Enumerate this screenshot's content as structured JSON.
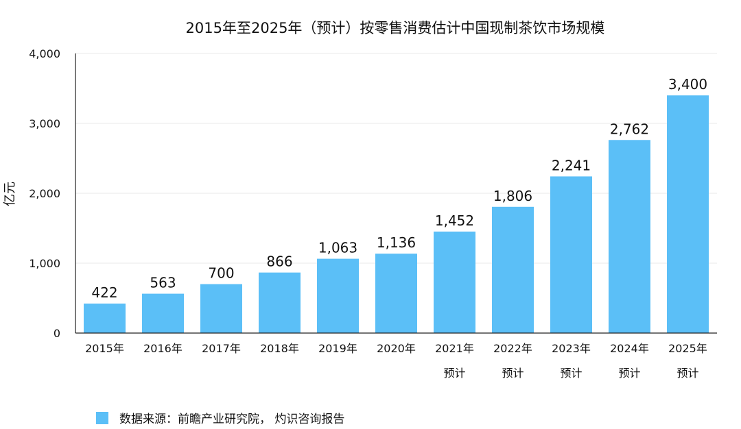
{
  "colors": {
    "bar": "#5bbff7",
    "grid": "#e9e9e9",
    "axis": "#222222",
    "text": "#111111"
  },
  "legend": {
    "text": "数据来源：前瞻产业研究院， 灼识咨询报告"
  },
  "chart_data": {
    "type": "bar",
    "title": "2015年至2025年（预计）按零售消费估计中国现制茶饮市场规模",
    "ylabel": "亿元",
    "xlabel": "",
    "ylim": [
      0,
      4000
    ],
    "yticks": [
      "0",
      "1,000",
      "2,000",
      "3,000",
      "4,000"
    ],
    "ytick_values": [
      0,
      1000,
      2000,
      3000,
      4000
    ],
    "grid": true,
    "legend_position": "bottom-left",
    "categories": [
      [
        "2015年"
      ],
      [
        "2016年"
      ],
      [
        "2017年"
      ],
      [
        "2018年"
      ],
      [
        "2019年"
      ],
      [
        "2020年"
      ],
      [
        "2021年",
        "预计"
      ],
      [
        "2022年",
        "预计"
      ],
      [
        "2023年",
        "预计"
      ],
      [
        "2024年",
        "预计"
      ],
      [
        "2025年",
        "预计"
      ]
    ],
    "values": [
      422,
      563,
      700,
      866,
      1063,
      1136,
      1452,
      1806,
      2241,
      2762,
      3400
    ],
    "value_labels": [
      "422",
      "563",
      "700",
      "866",
      "1,063",
      "1,136",
      "1,452",
      "1,806",
      "2,241",
      "2,762",
      "3,400"
    ]
  }
}
